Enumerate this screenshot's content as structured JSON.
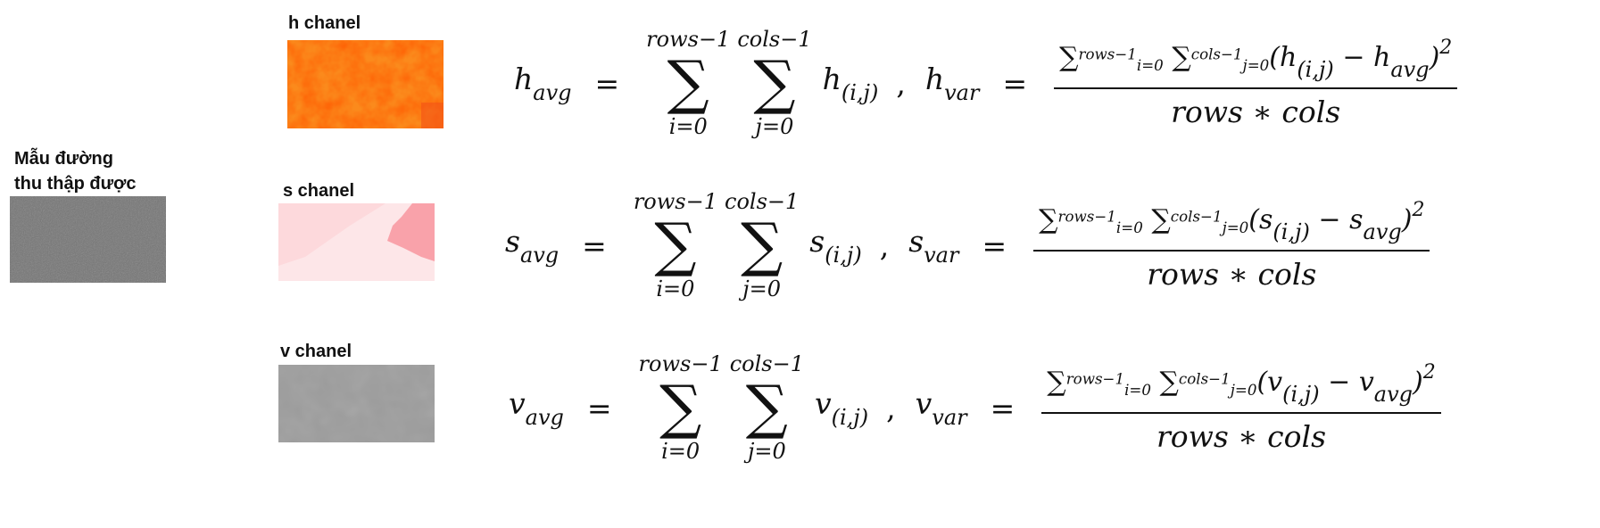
{
  "sample": {
    "label_line1": "Mẫu đường",
    "label_line2": "thu thập được"
  },
  "channels": [
    {
      "label": "h chanel",
      "symbol": "h"
    },
    {
      "label": "s chanel",
      "symbol": "s"
    },
    {
      "label": "v chanel",
      "symbol": "v"
    }
  ],
  "formula": {
    "avg_sub": "avg",
    "var_sub": "var",
    "index_sub": "(i,j)",
    "rows_upper": "rows−1",
    "cols_upper": "cols−1",
    "i_lower": "i=0",
    "j_lower": "j=0",
    "denominator": "rows ∗ cols",
    "squared": "2"
  },
  "colors": {
    "h_patch": "#fa6a12",
    "s_patch": "#fde6e8",
    "v_patch": "#9c9c9c",
    "sample_patch": "#747474"
  }
}
